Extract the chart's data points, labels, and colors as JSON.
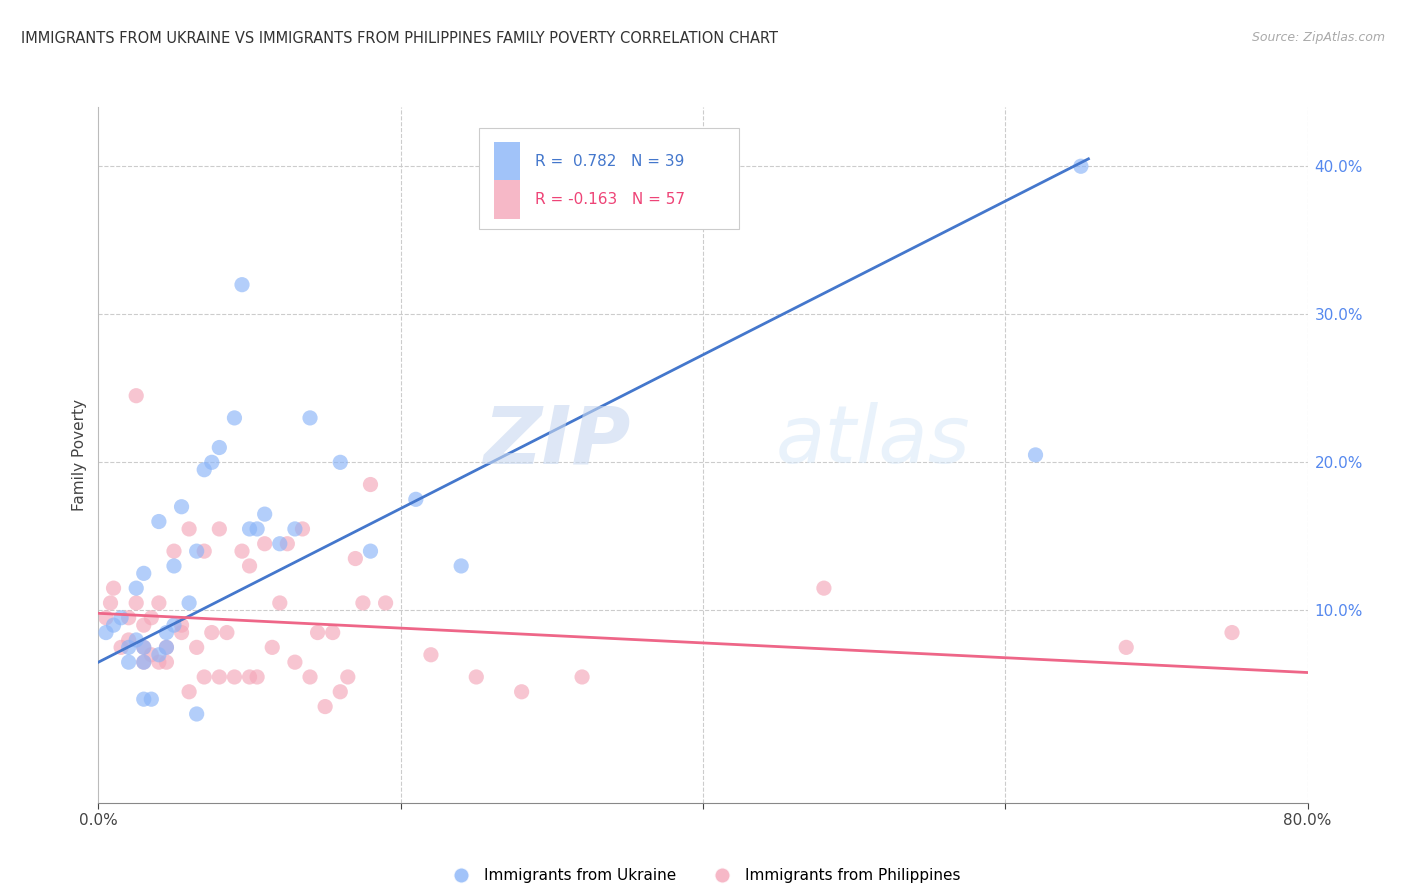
{
  "title": "IMMIGRANTS FROM UKRAINE VS IMMIGRANTS FROM PHILIPPINES FAMILY POVERTY CORRELATION CHART",
  "source": "Source: ZipAtlas.com",
  "ylabel": "Family Poverty",
  "xlim": [
    0.0,
    0.8
  ],
  "ylim": [
    -0.03,
    0.44
  ],
  "y_ticks_right": [
    0.1,
    0.2,
    0.3,
    0.4
  ],
  "y_tick_labels_right": [
    "10.0%",
    "20.0%",
    "30.0%",
    "40.0%"
  ],
  "watermark_zip": "ZIP",
  "watermark_atlas": "atlas",
  "legend_ukraine": "Immigrants from Ukraine",
  "legend_philippines": "Immigrants from Philippines",
  "R_ukraine": "0.782",
  "N_ukraine": "39",
  "R_philippines": "-0.163",
  "N_philippines": "57",
  "ukraine_color": "#8ab4f8",
  "ukraine_color_edge": "#6699ee",
  "philippines_color": "#f4a7b9",
  "philippines_color_edge": "#ee7799",
  "ukraine_line_color": "#4477cc",
  "philippines_line_color": "#ee6688",
  "ukraine_scatter_x": [
    0.005,
    0.01,
    0.015,
    0.02,
    0.02,
    0.025,
    0.025,
    0.03,
    0.03,
    0.03,
    0.03,
    0.035,
    0.04,
    0.04,
    0.045,
    0.045,
    0.05,
    0.05,
    0.055,
    0.06,
    0.065,
    0.065,
    0.07,
    0.075,
    0.08,
    0.09,
    0.095,
    0.1,
    0.105,
    0.11,
    0.12,
    0.13,
    0.14,
    0.16,
    0.18,
    0.21,
    0.24,
    0.62,
    0.65
  ],
  "ukraine_scatter_y": [
    0.085,
    0.09,
    0.095,
    0.065,
    0.075,
    0.08,
    0.115,
    0.04,
    0.065,
    0.075,
    0.125,
    0.04,
    0.07,
    0.16,
    0.075,
    0.085,
    0.09,
    0.13,
    0.17,
    0.105,
    0.14,
    0.03,
    0.195,
    0.2,
    0.21,
    0.23,
    0.32,
    0.155,
    0.155,
    0.165,
    0.145,
    0.155,
    0.23,
    0.2,
    0.14,
    0.175,
    0.13,
    0.205,
    0.4
  ],
  "philippines_scatter_x": [
    0.005,
    0.008,
    0.01,
    0.015,
    0.02,
    0.02,
    0.025,
    0.025,
    0.03,
    0.03,
    0.03,
    0.035,
    0.035,
    0.04,
    0.04,
    0.045,
    0.045,
    0.05,
    0.055,
    0.055,
    0.06,
    0.06,
    0.065,
    0.07,
    0.07,
    0.075,
    0.08,
    0.08,
    0.085,
    0.09,
    0.095,
    0.1,
    0.1,
    0.105,
    0.11,
    0.115,
    0.12,
    0.125,
    0.13,
    0.135,
    0.14,
    0.145,
    0.15,
    0.155,
    0.16,
    0.165,
    0.17,
    0.175,
    0.18,
    0.19,
    0.22,
    0.25,
    0.28,
    0.32,
    0.48,
    0.68,
    0.75
  ],
  "philippines_scatter_y": [
    0.095,
    0.105,
    0.115,
    0.075,
    0.08,
    0.095,
    0.105,
    0.245,
    0.075,
    0.09,
    0.065,
    0.07,
    0.095,
    0.065,
    0.105,
    0.065,
    0.075,
    0.14,
    0.085,
    0.09,
    0.155,
    0.045,
    0.075,
    0.14,
    0.055,
    0.085,
    0.155,
    0.055,
    0.085,
    0.055,
    0.14,
    0.055,
    0.13,
    0.055,
    0.145,
    0.075,
    0.105,
    0.145,
    0.065,
    0.155,
    0.055,
    0.085,
    0.035,
    0.085,
    0.045,
    0.055,
    0.135,
    0.105,
    0.185,
    0.105,
    0.07,
    0.055,
    0.045,
    0.055,
    0.115,
    0.075,
    0.085
  ],
  "ukraine_trend_x": [
    0.0,
    0.655
  ],
  "ukraine_trend_y": [
    0.065,
    0.405
  ],
  "philippines_trend_x": [
    0.0,
    0.8
  ],
  "philippines_trend_y": [
    0.098,
    0.058
  ]
}
